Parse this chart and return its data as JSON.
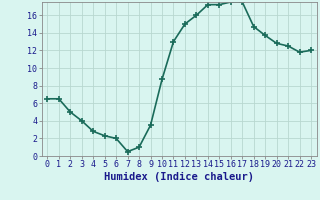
{
  "x": [
    0,
    1,
    2,
    3,
    4,
    5,
    6,
    7,
    8,
    9,
    10,
    11,
    12,
    13,
    14,
    15,
    16,
    17,
    18,
    19,
    20,
    21,
    22,
    23
  ],
  "y": [
    6.5,
    6.5,
    5.0,
    4.0,
    2.8,
    2.3,
    2.0,
    0.5,
    1.0,
    3.5,
    8.7,
    13.0,
    15.0,
    16.0,
    17.2,
    17.2,
    17.5,
    17.5,
    14.7,
    13.7,
    12.8,
    12.5,
    11.8,
    12.0
  ],
  "line_color": "#1a6b5a",
  "marker": "+",
  "marker_size": 4,
  "background_color": "#d9f5f0",
  "grid_color": "#b8d8d0",
  "xlabel": "Humidex (Indice chaleur)",
  "xlim": [
    -0.5,
    23.5
  ],
  "ylim": [
    0,
    17.5
  ],
  "yticks": [
    0,
    2,
    4,
    6,
    8,
    10,
    12,
    14,
    16
  ],
  "xticks": [
    0,
    1,
    2,
    3,
    4,
    5,
    6,
    7,
    8,
    9,
    10,
    11,
    12,
    13,
    14,
    15,
    16,
    17,
    18,
    19,
    20,
    21,
    22,
    23
  ],
  "xtick_labels": [
    "0",
    "1",
    "2",
    "3",
    "4",
    "5",
    "6",
    "7",
    "8",
    "9",
    "10",
    "11",
    "12",
    "13",
    "14",
    "15",
    "16",
    "17",
    "18",
    "19",
    "20",
    "21",
    "22",
    "23"
  ],
  "font_color": "#1a1a8c",
  "tick_fontsize": 6,
  "xlabel_fontsize": 7.5,
  "linewidth": 1.2,
  "marker_linewidth": 1.2
}
